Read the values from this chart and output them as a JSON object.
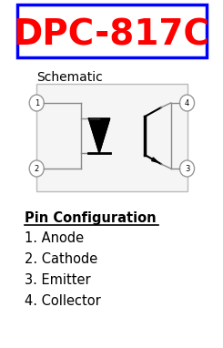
{
  "title": "DPC-817C",
  "title_color": "#FF0000",
  "title_box_color": "#0000FF",
  "bg_color": "#FFFFFF",
  "schematic_label": "Schematic",
  "pin_config_label": "Pin Configuration",
  "pins": [
    "1. Anode",
    "2. Cathode",
    "3. Emitter",
    "4. Collector"
  ],
  "figsize": [
    2.45,
    3.82
  ],
  "dpi": 100
}
